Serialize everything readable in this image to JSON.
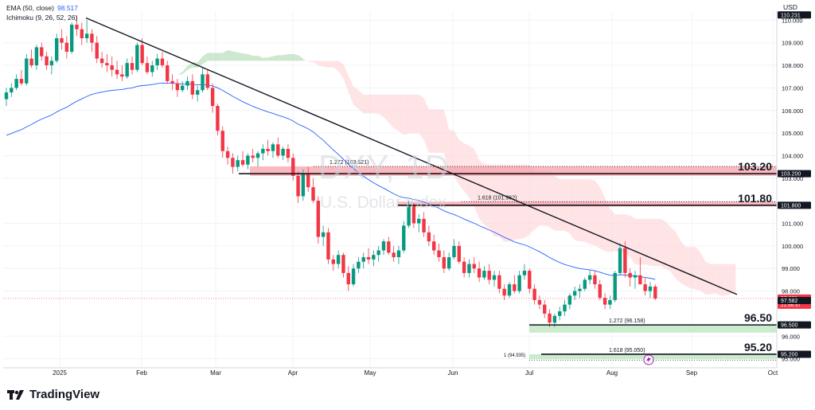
{
  "legend": {
    "ema_label": "EMA (50, close)",
    "ema_value": "98.517",
    "ichimoku_label": "Ichimoku (9, 26, 52, 26)"
  },
  "currency": "USD",
  "watermark": {
    "symbol": "DXY, 1D",
    "name": "U.S. Dollar Index"
  },
  "brand": "TradingView",
  "colors": {
    "up": "#089981",
    "down": "#f23645",
    "ema": "#2962ff",
    "trend": "#131722",
    "cloud_bull": "#a5d6a7",
    "cloud_bear": "#ffcdd2"
  },
  "chart_data": {
    "type": "candlestick",
    "title": "",
    "ylim": [
      94.6,
      110.4
    ],
    "y_ticks": [
      "110.000",
      "109.000",
      "108.000",
      "107.000",
      "106.000",
      "105.000",
      "104.000",
      "103.000",
      "101.000",
      "100.000",
      "99.000",
      "98.000",
      "96.000",
      "95.000"
    ],
    "x_ticks": [
      "2025",
      "Feb",
      "Mar",
      "Apr",
      "May",
      "Jun",
      "Jul",
      "Aug",
      "Sep",
      "Oct"
    ],
    "price_labels": [
      {
        "text": "110.231",
        "value": 110.231,
        "style": "dark"
      },
      {
        "text": "103.200",
        "value": 103.2,
        "style": "dark"
      },
      {
        "text": "101.800",
        "value": 101.8,
        "style": "dark"
      },
      {
        "text": "97.671",
        "value": 97.671,
        "style": "red",
        "countdown": "21:56:57"
      },
      {
        "text": "97.582",
        "value": 97.582,
        "style": "dark"
      },
      {
        "text": "96.500",
        "value": 96.5,
        "style": "dark"
      },
      {
        "text": "95.200",
        "value": 95.2,
        "style": "dark"
      }
    ],
    "levels": [
      {
        "big_label": "103.20",
        "value": 103.2,
        "zone": [
          103.1,
          103.52
        ],
        "fib_text": "1.272 (103.521)"
      },
      {
        "big_label": "101.80",
        "value": 101.8,
        "zone": [
          101.8,
          101.96
        ],
        "fib_text": "1.618 (101.962)"
      },
      {
        "big_label": "96.50",
        "value": 96.5,
        "zone": [
          96.16,
          96.5
        ],
        "fib_text": "1.272 (96.158)"
      },
      {
        "big_label": "95.20",
        "value": 95.2,
        "zone": [
          95.05,
          95.2
        ],
        "fib_text": "1.618 (95.050)",
        "extra_text": "1 (94.935)"
      }
    ],
    "trendline": {
      "from": [
        "2025-01-13",
        110.1
      ],
      "to": [
        "2025-09-22",
        97.85
      ]
    },
    "ohlc": [
      [
        106.5,
        107.0,
        106.2,
        106.8
      ],
      [
        106.8,
        107.2,
        106.6,
        107.0
      ],
      [
        107.0,
        107.6,
        106.9,
        107.4
      ],
      [
        107.4,
        107.8,
        107.1,
        107.2
      ],
      [
        107.2,
        108.5,
        107.1,
        108.3
      ],
      [
        108.3,
        108.7,
        107.9,
        108.0
      ],
      [
        108.0,
        108.9,
        107.8,
        108.8
      ],
      [
        108.8,
        109.0,
        108.2,
        108.4
      ],
      [
        108.4,
        108.6,
        107.8,
        108.0
      ],
      [
        108.0,
        108.4,
        107.6,
        108.2
      ],
      [
        108.2,
        109.4,
        108.1,
        109.2
      ],
      [
        109.2,
        109.6,
        108.7,
        109.0
      ],
      [
        109.0,
        109.3,
        108.3,
        108.6
      ],
      [
        108.6,
        109.9,
        108.5,
        109.8
      ],
      [
        109.8,
        110.2,
        109.3,
        109.6
      ],
      [
        109.6,
        109.9,
        108.9,
        109.2
      ],
      [
        109.2,
        110.0,
        109.0,
        109.4
      ],
      [
        109.4,
        109.6,
        108.6,
        109.0
      ],
      [
        109.0,
        109.3,
        108.1,
        108.3
      ],
      [
        108.3,
        108.6,
        107.9,
        108.1
      ],
      [
        108.1,
        108.5,
        107.7,
        108.0
      ],
      [
        108.0,
        108.4,
        107.5,
        107.8
      ],
      [
        107.8,
        108.2,
        107.4,
        107.6
      ],
      [
        107.6,
        108.0,
        107.3,
        107.5
      ],
      [
        107.5,
        108.3,
        107.4,
        108.1
      ],
      [
        108.1,
        108.4,
        107.6,
        107.8
      ],
      [
        107.8,
        109.0,
        107.7,
        108.9
      ],
      [
        108.9,
        109.2,
        108.0,
        108.1
      ],
      [
        108.1,
        108.4,
        107.6,
        107.7
      ],
      [
        107.7,
        108.2,
        107.5,
        108.0
      ],
      [
        108.0,
        108.5,
        107.8,
        108.3
      ],
      [
        108.3,
        108.6,
        107.9,
        108.0
      ],
      [
        108.0,
        108.2,
        107.2,
        107.3
      ],
      [
        107.3,
        107.6,
        106.9,
        107.2
      ],
      [
        107.2,
        107.4,
        106.6,
        106.9
      ],
      [
        106.9,
        107.3,
        106.8,
        107.1
      ],
      [
        107.1,
        107.5,
        106.9,
        107.3
      ],
      [
        107.3,
        107.6,
        106.5,
        106.7
      ],
      [
        106.7,
        107.1,
        106.4,
        106.9
      ],
      [
        106.9,
        107.9,
        106.8,
        107.6
      ],
      [
        107.6,
        107.8,
        106.9,
        107.0
      ],
      [
        107.0,
        107.2,
        105.9,
        106.2
      ],
      [
        106.2,
        106.3,
        104.9,
        105.1
      ],
      [
        105.1,
        105.3,
        103.9,
        104.2
      ],
      [
        104.2,
        104.4,
        103.6,
        103.9
      ],
      [
        103.9,
        104.1,
        103.2,
        103.5
      ],
      [
        103.5,
        104.0,
        103.3,
        103.8
      ],
      [
        103.8,
        104.2,
        103.5,
        103.6
      ],
      [
        103.6,
        104.1,
        103.4,
        104.0
      ],
      [
        104.0,
        104.3,
        103.7,
        103.9
      ],
      [
        103.9,
        104.2,
        103.5,
        104.1
      ],
      [
        104.1,
        104.5,
        103.8,
        104.3
      ],
      [
        104.3,
        104.7,
        104.0,
        104.2
      ],
      [
        104.2,
        104.6,
        103.9,
        104.5
      ],
      [
        104.5,
        104.8,
        103.9,
        104.0
      ],
      [
        104.0,
        104.4,
        103.8,
        104.3
      ],
      [
        104.3,
        104.5,
        103.7,
        103.9
      ],
      [
        103.9,
        104.1,
        102.9,
        103.1
      ],
      [
        103.1,
        103.3,
        101.9,
        102.2
      ],
      [
        102.2,
        103.4,
        102.0,
        103.2
      ],
      [
        103.2,
        103.5,
        102.4,
        102.6
      ],
      [
        102.6,
        103.0,
        101.9,
        102.0
      ],
      [
        102.0,
        102.2,
        100.1,
        100.4
      ],
      [
        100.4,
        100.9,
        100.0,
        100.6
      ],
      [
        100.6,
        100.8,
        99.2,
        99.4
      ],
      [
        99.4,
        99.6,
        98.9,
        99.2
      ],
      [
        99.2,
        99.8,
        99.0,
        99.6
      ],
      [
        99.6,
        99.7,
        98.6,
        98.8
      ],
      [
        98.8,
        99.1,
        98.0,
        98.3
      ],
      [
        98.3,
        99.2,
        98.2,
        99.0
      ],
      [
        99.0,
        99.5,
        98.8,
        99.3
      ],
      [
        99.3,
        99.7,
        99.0,
        99.5
      ],
      [
        99.5,
        99.9,
        99.2,
        99.4
      ],
      [
        99.4,
        99.8,
        99.1,
        99.6
      ],
      [
        99.6,
        100.0,
        99.3,
        99.8
      ],
      [
        99.8,
        100.3,
        99.6,
        100.2
      ],
      [
        100.2,
        100.4,
        99.6,
        99.7
      ],
      [
        99.7,
        100.0,
        99.3,
        99.5
      ],
      [
        99.5,
        100.0,
        99.2,
        99.8
      ],
      [
        99.8,
        101.1,
        99.7,
        100.9
      ],
      [
        100.9,
        102.0,
        100.8,
        101.8
      ],
      [
        101.8,
        101.9,
        100.8,
        101.0
      ],
      [
        101.0,
        101.4,
        100.6,
        101.2
      ],
      [
        101.2,
        101.5,
        100.4,
        100.6
      ],
      [
        100.6,
        100.9,
        100.0,
        100.2
      ],
      [
        100.2,
        100.5,
        99.6,
        99.8
      ],
      [
        99.8,
        100.1,
        99.3,
        99.5
      ],
      [
        99.5,
        99.8,
        98.8,
        99.0
      ],
      [
        99.0,
        99.7,
        98.9,
        99.5
      ],
      [
        99.5,
        100.3,
        99.4,
        100.0
      ],
      [
        100.0,
        100.2,
        99.2,
        99.3
      ],
      [
        99.3,
        99.5,
        98.6,
        98.8
      ],
      [
        98.8,
        99.4,
        98.6,
        99.2
      ],
      [
        99.2,
        99.5,
        98.8,
        99.0
      ],
      [
        99.0,
        99.3,
        98.4,
        98.6
      ],
      [
        98.6,
        99.1,
        98.5,
        98.9
      ],
      [
        98.9,
        99.2,
        98.3,
        98.5
      ],
      [
        98.5,
        98.9,
        98.2,
        98.7
      ],
      [
        98.7,
        98.9,
        97.9,
        98.1
      ],
      [
        98.1,
        98.3,
        97.6,
        97.8
      ],
      [
        97.8,
        98.4,
        97.7,
        98.3
      ],
      [
        98.3,
        98.7,
        97.9,
        98.0
      ],
      [
        98.0,
        98.9,
        97.9,
        98.7
      ],
      [
        98.7,
        99.2,
        98.5,
        98.9
      ],
      [
        98.9,
        99.0,
        97.9,
        98.1
      ],
      [
        98.1,
        98.3,
        97.4,
        97.6
      ],
      [
        97.6,
        97.8,
        97.2,
        97.4
      ],
      [
        97.4,
        97.6,
        96.8,
        97.0
      ],
      [
        97.0,
        97.2,
        96.4,
        96.6
      ],
      [
        96.6,
        97.0,
        96.4,
        96.9
      ],
      [
        96.9,
        97.3,
        96.7,
        97.1
      ],
      [
        97.1,
        97.6,
        96.9,
        97.4
      ],
      [
        97.4,
        97.9,
        97.2,
        97.8
      ],
      [
        97.8,
        98.2,
        97.6,
        98.0
      ],
      [
        98.0,
        98.3,
        97.7,
        98.1
      ],
      [
        98.1,
        98.6,
        98.0,
        98.5
      ],
      [
        98.5,
        98.9,
        98.3,
        98.7
      ],
      [
        98.7,
        98.9,
        98.1,
        98.3
      ],
      [
        98.3,
        98.5,
        97.6,
        97.7
      ],
      [
        97.7,
        97.9,
        97.2,
        97.4
      ],
      [
        97.4,
        97.8,
        97.2,
        97.6
      ],
      [
        97.6,
        98.9,
        97.5,
        98.8
      ],
      [
        98.8,
        100.1,
        98.7,
        99.9
      ],
      [
        99.9,
        100.2,
        98.6,
        98.8
      ],
      [
        98.8,
        99.0,
        98.2,
        98.6
      ],
      [
        98.6,
        98.9,
        98.1,
        98.7
      ],
      [
        98.7,
        99.5,
        98.3,
        98.3
      ],
      [
        98.3,
        98.6,
        97.8,
        98.0
      ],
      [
        98.0,
        98.4,
        97.7,
        98.2
      ],
      [
        98.2,
        98.3,
        97.6,
        97.67
      ]
    ],
    "series": [
      {
        "name": "EMA (50, close)",
        "last": 98.517
      }
    ]
  }
}
